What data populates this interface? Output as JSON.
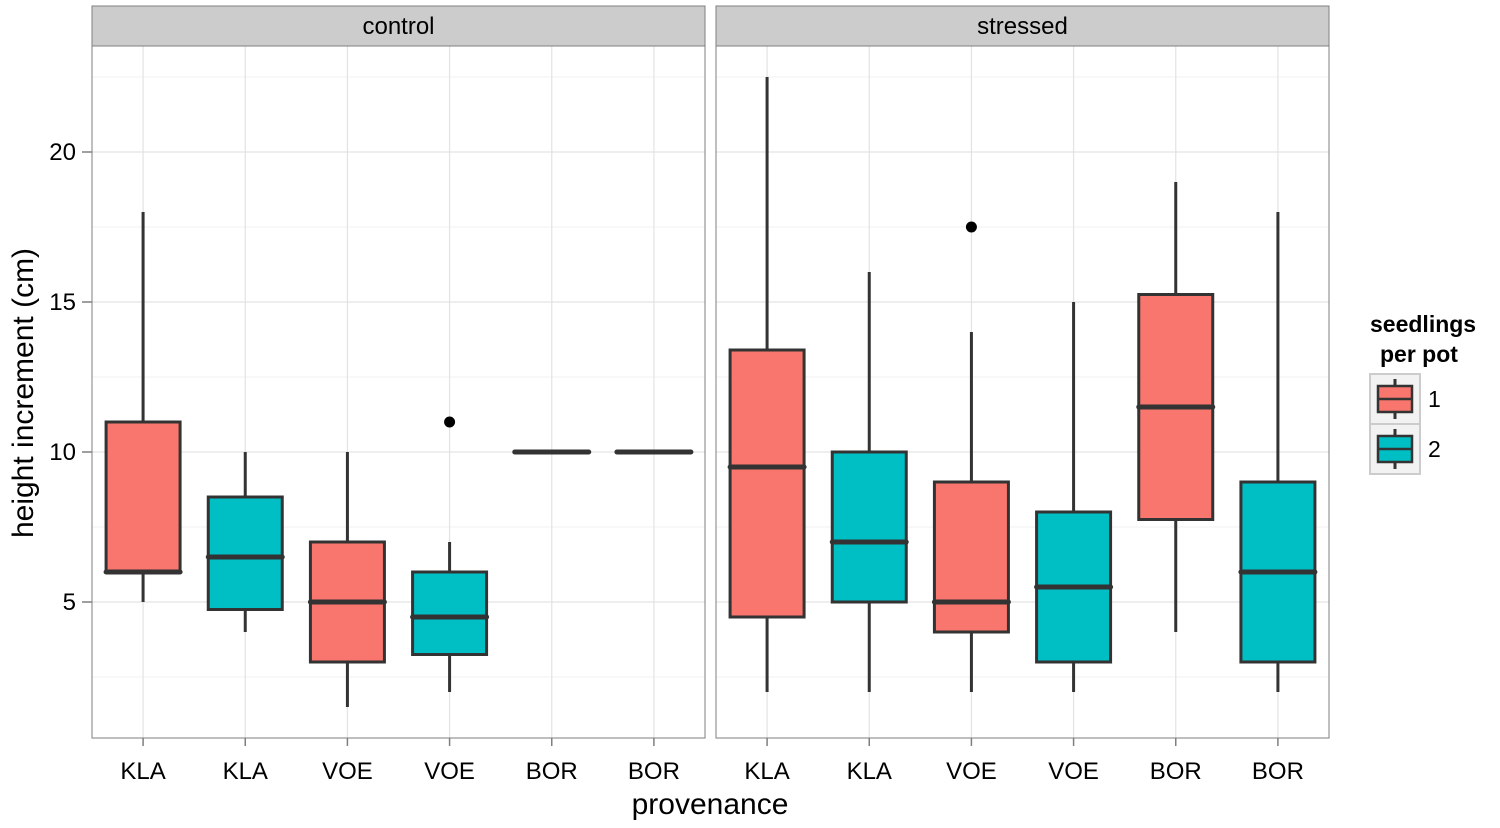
{
  "chart_data": {
    "type": "boxplot",
    "xlabel": "provenance",
    "ylabel": "height increment (cm)",
    "yticks": [
      5,
      10,
      15,
      20
    ],
    "ylim": [
      1,
      23
    ],
    "legend": {
      "title_line1": "seedlings",
      "title_line2": "per pot",
      "position": "right",
      "entries": [
        {
          "label": "1",
          "color": "#F8766D"
        },
        {
          "label": "2",
          "color": "#00BFC4"
        }
      ]
    },
    "colors": {
      "1": "#F8766D",
      "2": "#00BFC4"
    },
    "panels": [
      {
        "name": "control",
        "categories": [
          "KLA",
          "KLA",
          "VOE",
          "VOE",
          "BOR",
          "BOR"
        ],
        "boxes": [
          {
            "group": "1",
            "min": 5,
            "q1": 6,
            "median": 6,
            "q3": 11,
            "max": 18,
            "outliers": []
          },
          {
            "group": "2",
            "min": 4,
            "q1": 4.75,
            "median": 6.5,
            "q3": 8.5,
            "max": 10,
            "outliers": []
          },
          {
            "group": "1",
            "min": 1.5,
            "q1": 3,
            "median": 5,
            "q3": 7,
            "max": 10,
            "outliers": []
          },
          {
            "group": "2",
            "min": 2,
            "q1": 3.25,
            "median": 4.5,
            "q3": 6,
            "max": 7,
            "outliers": [
              11
            ]
          },
          {
            "group": "1",
            "min": 10,
            "q1": 10,
            "median": 10,
            "q3": 10,
            "max": 10,
            "outliers": []
          },
          {
            "group": "2",
            "min": 10,
            "q1": 10,
            "median": 10,
            "q3": 10,
            "max": 10,
            "outliers": []
          }
        ]
      },
      {
        "name": "stressed",
        "categories": [
          "KLA",
          "KLA",
          "VOE",
          "VOE",
          "BOR",
          "BOR"
        ],
        "boxes": [
          {
            "group": "1",
            "min": 2,
            "q1": 4.5,
            "median": 9.5,
            "q3": 13.4,
            "max": 22.5,
            "outliers": []
          },
          {
            "group": "2",
            "min": 2,
            "q1": 5,
            "median": 7,
            "q3": 10,
            "max": 16,
            "outliers": []
          },
          {
            "group": "1",
            "min": 2,
            "q1": 4,
            "median": 5,
            "q3": 9,
            "max": 14,
            "outliers": [
              17.5
            ]
          },
          {
            "group": "2",
            "min": 2,
            "q1": 3,
            "median": 5.5,
            "q3": 8,
            "max": 15,
            "outliers": []
          },
          {
            "group": "1",
            "min": 4,
            "q1": 7.75,
            "median": 11.5,
            "q3": 15.25,
            "max": 19,
            "outliers": []
          },
          {
            "group": "2",
            "min": 2,
            "q1": 3,
            "median": 6,
            "q3": 9,
            "max": 18,
            "outliers": []
          }
        ]
      }
    ]
  }
}
